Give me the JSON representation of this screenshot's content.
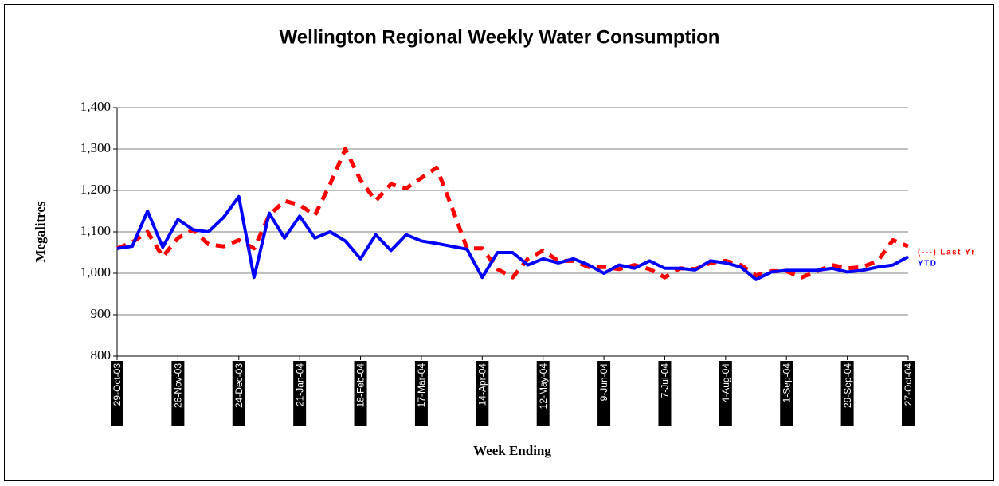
{
  "chart_data": {
    "type": "line",
    "title": "Wellington Regional Weekly Water Consumption",
    "y_label": "Megalitres",
    "x_label": "Week Ending",
    "categories": [
      "29-Oct-03",
      null,
      null,
      null,
      "26-Nov-03",
      null,
      null,
      null,
      "24-Dec-03",
      null,
      null,
      null,
      "21-Jan-04",
      null,
      null,
      null,
      "18-Feb-04",
      null,
      null,
      null,
      "17-Mar-04",
      null,
      null,
      null,
      "14-Apr-04",
      null,
      null,
      null,
      "12-May-04",
      null,
      null,
      null,
      "9-Jun-04",
      null,
      null,
      null,
      "7-Jul-04",
      null,
      null,
      null,
      "4-Aug-04",
      null,
      null,
      null,
      "1-Sep-04",
      null,
      null,
      null,
      "29-Sep-04",
      null,
      null,
      null,
      "27-Oct-04"
    ],
    "series": [
      {
        "name": "(---) Last Yr",
        "color": "#ff0000",
        "dashed": true,
        "values": [
          1060,
          1075,
          1100,
          1040,
          1085,
          1105,
          1070,
          1065,
          1080,
          1060,
          1140,
          1175,
          1165,
          1140,
          1215,
          1300,
          1225,
          1175,
          1215,
          1205,
          1230,
          1255,
          1160,
          1060,
          1060,
          1010,
          990,
          1035,
          1055,
          1030,
          1030,
          1015,
          1015,
          1010,
          1020,
          1010,
          990,
          1012,
          1010,
          1025,
          1030,
          1020,
          995,
          1005,
          1005,
          990,
          1005,
          1020,
          1012,
          1015,
          1030,
          1080,
          1065
        ]
      },
      {
        "name": "YTD",
        "color": "#0000ff",
        "dashed": false,
        "values": [
          1060,
          1065,
          1150,
          1063,
          1130,
          1105,
          1100,
          1135,
          1185,
          990,
          1145,
          1085,
          1138,
          1085,
          1100,
          1078,
          1035,
          1093,
          1055,
          1093,
          1078,
          1072,
          1065,
          1058,
          990,
          1050,
          1050,
          1020,
          1035,
          1025,
          1035,
          1020,
          1000,
          1020,
          1012,
          1030,
          1012,
          1012,
          1008,
          1030,
          1025,
          1015,
          985,
          1003,
          1007,
          1007,
          1007,
          1012,
          1003,
          1007,
          1015,
          1020,
          1040
        ]
      }
    ],
    "ylim": [
      800,
      1400
    ],
    "yticks": [
      800,
      900,
      {
        "value": 1000,
        "label": "1,000"
      },
      {
        "value": 1100,
        "label": "1,100"
      },
      {
        "value": 1200,
        "label": "1,200"
      },
      {
        "value": 1300,
        "label": "1,300"
      },
      {
        "value": 1400,
        "label": "1,400"
      }
    ],
    "grid": true,
    "legend": "right"
  }
}
